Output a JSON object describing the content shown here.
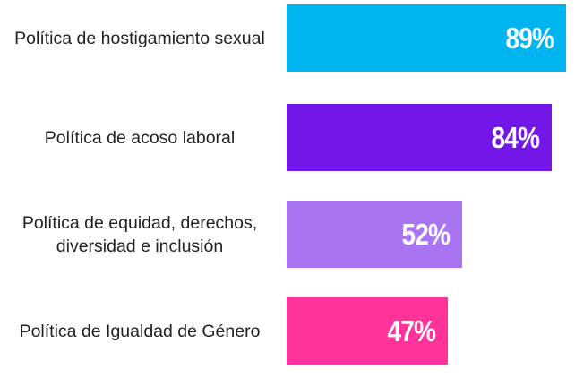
{
  "chart_data": {
    "type": "bar",
    "orientation": "horizontal",
    "categories": [
      "Política de hostigamiento sexual",
      "Política de acoso laboral",
      "Política de equidad, derechos, diversidad e inclusión",
      "Política de Igualdad de Género"
    ],
    "values": [
      89,
      84,
      52,
      47
    ],
    "value_labels": [
      "89%",
      "84%",
      "52%",
      "47%"
    ],
    "colors": [
      "#00b4f0",
      "#7317e8",
      "#a874f2",
      "#ff3399"
    ]
  }
}
